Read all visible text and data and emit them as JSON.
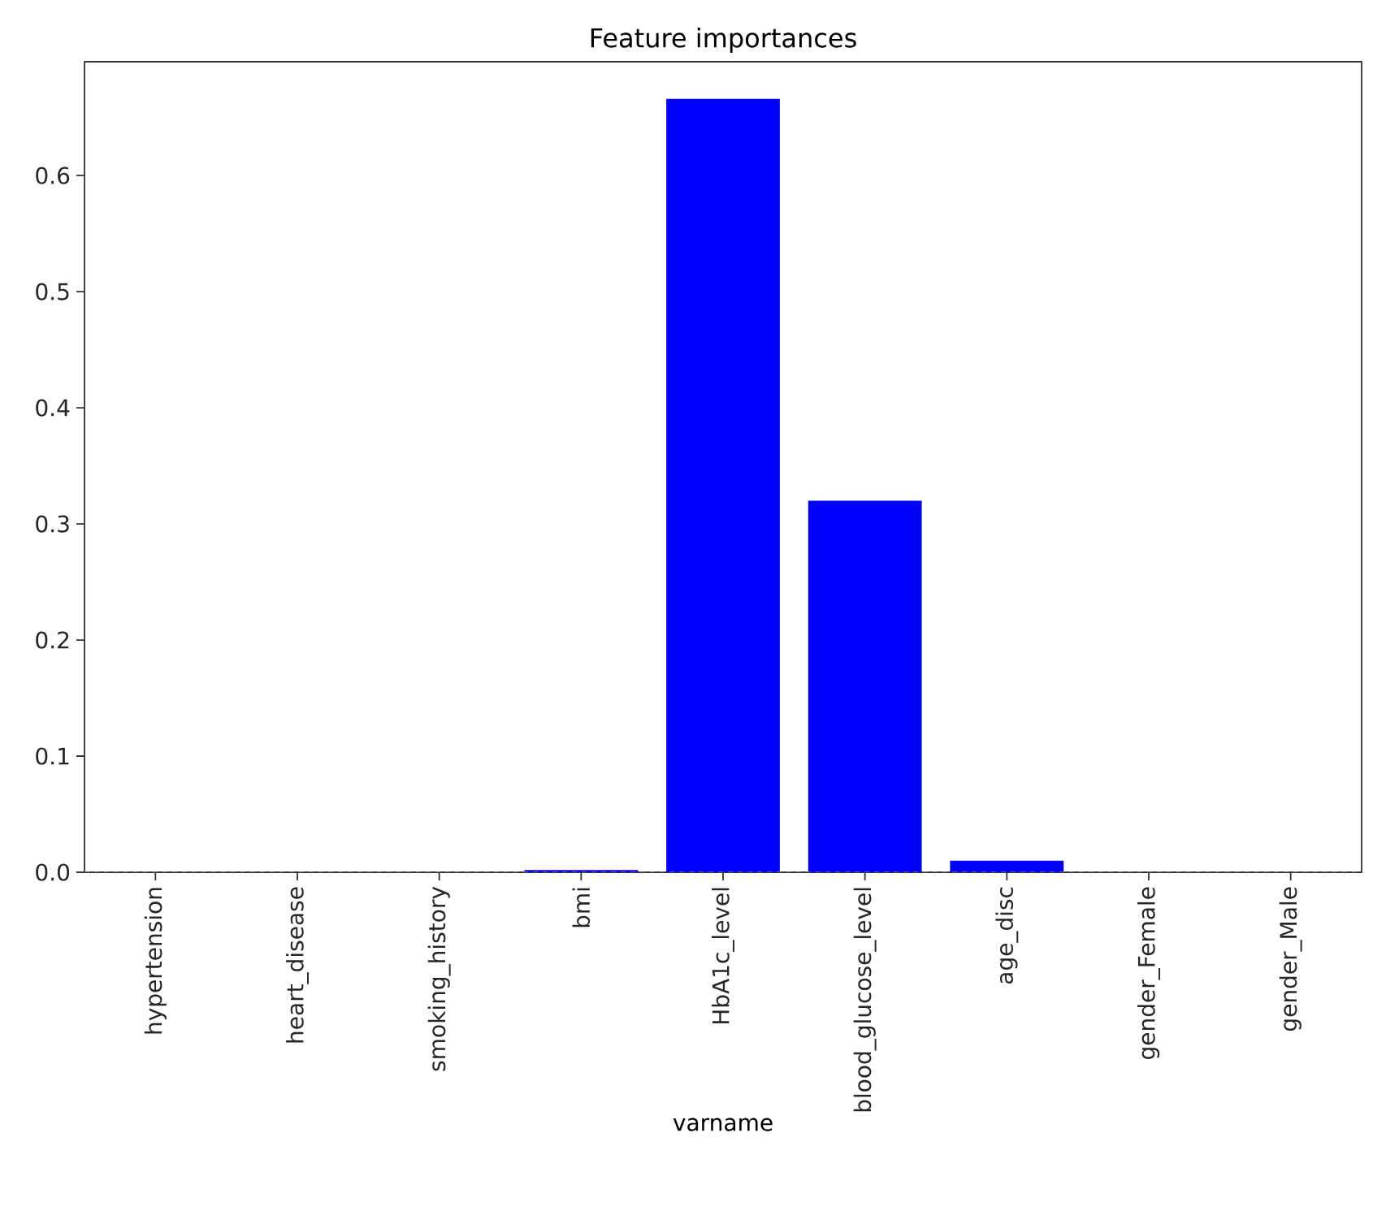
{
  "chart_data": {
    "type": "bar",
    "title": "Feature importances",
    "xlabel": "varname",
    "categories": [
      "hypertension",
      "heart_disease",
      "smoking_history",
      "bmi",
      "HbA1c_level",
      "blood_glucose_level",
      "age_disc",
      "gender_Female",
      "gender_Male"
    ],
    "values": [
      0,
      0,
      0,
      0.002,
      0.666,
      0.32,
      0.01,
      0,
      0
    ],
    "color": "#0000ff",
    "ylim": [
      0,
      0.698
    ],
    "yticks": [
      {
        "value": 0,
        "label": "0.0"
      },
      0.1,
      0.2,
      0.3,
      0.4,
      0.5,
      0.6
    ],
    "ref_lines": [
      {
        "axis": "y",
        "value": 0,
        "color": "#808080",
        "line_style": "dashed"
      }
    ],
    "grid": false
  }
}
